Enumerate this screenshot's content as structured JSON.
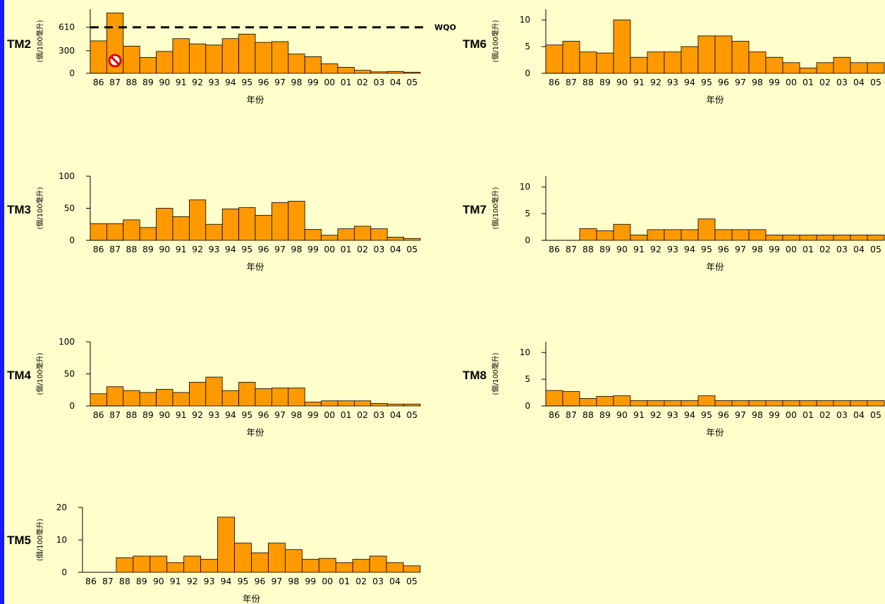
{
  "colors": {
    "background": "#ffffcc",
    "bar": "#ff9900",
    "left_bar": "#1a1aff",
    "wqo_line": "#000000"
  },
  "chart_data": [
    {
      "type": "bar",
      "station": "TM2",
      "ylabel": "(個/100毫升)",
      "xlabel": "年份",
      "categories": [
        "86",
        "87",
        "88",
        "89",
        "90",
        "91",
        "92",
        "93",
        "94",
        "95",
        "96",
        "97",
        "98",
        "99",
        "00",
        "01",
        "02",
        "03",
        "04",
        "05"
      ],
      "values": [
        430,
        800,
        360,
        210,
        290,
        460,
        390,
        375,
        460,
        520,
        410,
        420,
        255,
        220,
        125,
        80,
        40,
        20,
        25,
        15
      ],
      "ylim": [
        0,
        850
      ],
      "yticks": [
        0,
        300,
        610
      ],
      "wqo": {
        "value": 610,
        "label": "WQO"
      },
      "marker": {
        "category": "87",
        "icon": "prohibition-icon"
      }
    },
    {
      "type": "bar",
      "station": "TM3",
      "ylabel": "(個/100毫升)",
      "xlabel": "年份",
      "categories": [
        "86",
        "87",
        "88",
        "89",
        "90",
        "91",
        "92",
        "93",
        "94",
        "95",
        "96",
        "97",
        "98",
        "99",
        "00",
        "01",
        "02",
        "03",
        "04",
        "05"
      ],
      "values": [
        26,
        26,
        32,
        20,
        50,
        37,
        63,
        25,
        49,
        51,
        39,
        59,
        61,
        17,
        8,
        18,
        22,
        18,
        5,
        3
      ],
      "ylim": [
        0,
        100
      ],
      "yticks": [
        0,
        50,
        100
      ]
    },
    {
      "type": "bar",
      "station": "TM4",
      "ylabel": "(個/100毫升)",
      "xlabel": "年份",
      "categories": [
        "86",
        "87",
        "88",
        "89",
        "90",
        "91",
        "92",
        "93",
        "94",
        "95",
        "96",
        "97",
        "98",
        "99",
        "00",
        "01",
        "02",
        "03",
        "04",
        "05"
      ],
      "values": [
        19,
        30,
        24,
        21,
        26,
        21,
        37,
        45,
        24,
        37,
        27,
        28,
        28,
        6,
        8,
        8,
        8,
        4,
        3,
        3
      ],
      "ylim": [
        0,
        100
      ],
      "yticks": [
        0,
        50,
        100
      ]
    },
    {
      "type": "bar",
      "station": "TM5",
      "ylabel": "(個/100毫升)",
      "xlabel": "年份",
      "categories": [
        "86",
        "87",
        "88",
        "89",
        "90",
        "91",
        "92",
        "93",
        "94",
        "95",
        "96",
        "97",
        "98",
        "99",
        "00",
        "01",
        "02",
        "03",
        "04",
        "05"
      ],
      "values": [
        null,
        null,
        4.5,
        5,
        5,
        3,
        5,
        4,
        17,
        9,
        6,
        9,
        7,
        4,
        4.3,
        3,
        4,
        5,
        3,
        2
      ],
      "ylim": [
        0,
        20
      ],
      "yticks": [
        0,
        10,
        20
      ]
    },
    {
      "type": "bar",
      "station": "TM6",
      "ylabel": "(個/100毫升)",
      "xlabel": "年份",
      "categories": [
        "86",
        "87",
        "88",
        "89",
        "90",
        "91",
        "92",
        "93",
        "94",
        "95",
        "96",
        "97",
        "98",
        "99",
        "00",
        "01",
        "02",
        "03",
        "04",
        "05"
      ],
      "values": [
        5.3,
        6,
        4,
        3.8,
        10,
        3,
        4,
        4,
        5,
        7,
        7,
        6,
        4,
        3,
        2,
        1,
        2,
        3,
        2,
        2
      ],
      "ylim": [
        0,
        12
      ],
      "yticks": [
        0,
        5,
        10
      ]
    },
    {
      "type": "bar",
      "station": "TM7",
      "ylabel": "(個/100毫升)",
      "xlabel": "年份",
      "categories": [
        "86",
        "87",
        "88",
        "89",
        "90",
        "91",
        "92",
        "93",
        "94",
        "95",
        "96",
        "97",
        "98",
        "99",
        "00",
        "01",
        "02",
        "03",
        "04",
        "05"
      ],
      "values": [
        null,
        null,
        2.2,
        1.8,
        3,
        1,
        2,
        2,
        2,
        4,
        2,
        2,
        2,
        1,
        1,
        1,
        1,
        1,
        1,
        1
      ],
      "ylim": [
        0,
        12
      ],
      "yticks": [
        0,
        5,
        10
      ]
    },
    {
      "type": "bar",
      "station": "TM8",
      "ylabel": "(個/100毫升)",
      "xlabel": "年份",
      "categories": [
        "86",
        "87",
        "88",
        "89",
        "90",
        "91",
        "92",
        "93",
        "94",
        "95",
        "96",
        "97",
        "98",
        "99",
        "00",
        "01",
        "02",
        "03",
        "04",
        "05"
      ],
      "values": [
        2.9,
        2.7,
        1.4,
        1.8,
        1.9,
        1,
        1,
        1,
        1,
        1.9,
        1,
        1,
        1,
        1,
        1,
        1,
        1,
        1,
        1,
        1
      ],
      "ylim": [
        0,
        12
      ],
      "yticks": [
        0,
        5,
        10
      ]
    }
  ]
}
